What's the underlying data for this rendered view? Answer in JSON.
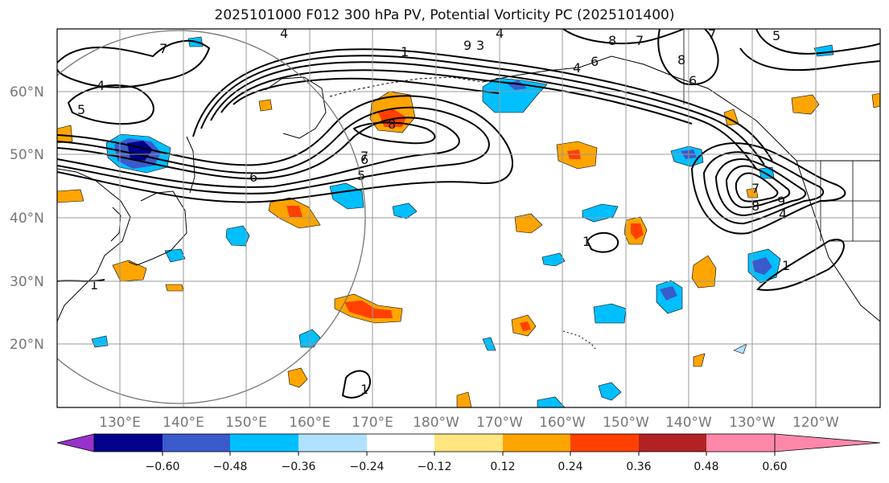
{
  "title": "2025101000 F012 300 hPa PV, Potential Vorticity PC (2025101400)",
  "lat_labels": [
    "60°N",
    "50°N",
    "40°N",
    "30°N",
    "20°N"
  ],
  "lon_labels": [
    "130°E",
    "140°E",
    "150°E",
    "160°E",
    "170°E",
    "180°W",
    "170°W",
    "160°W",
    "150°W",
    "140°W",
    "130°W",
    "120°W"
  ],
  "colorbar": {
    "ticks": [
      "−0.60",
      "−0.48",
      "−0.36",
      "−0.24",
      "−0.12",
      "0.12",
      "0.24",
      "0.36",
      "0.48",
      "0.60"
    ],
    "colors": [
      "#9932cc",
      "#00008b",
      "#3a5bcc",
      "#00bfff",
      "#b0e2ff",
      "#ffffff",
      "#ffe680",
      "#ffa500",
      "#ff4000",
      "#b22222",
      "#ff88aa"
    ]
  },
  "contour_labels": [
    "4",
    "5",
    "4",
    "7",
    "8",
    "9",
    "3",
    "4",
    "6",
    "4",
    "8",
    "7",
    "6",
    "8",
    "6",
    "5",
    "7",
    "5",
    "6",
    "7",
    "1",
    "1",
    "1",
    "1",
    "1",
    "7",
    "8",
    "9",
    "4"
  ]
}
